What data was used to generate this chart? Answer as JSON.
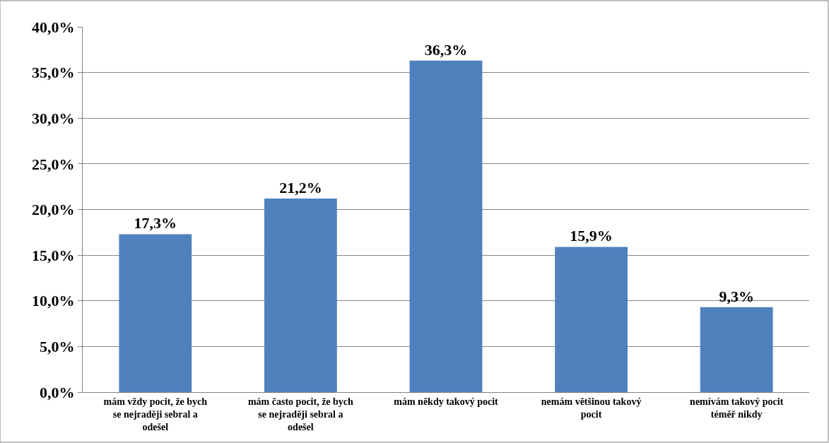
{
  "chart_data": {
    "type": "bar",
    "categories": [
      "mám vždy pocit, že bych se nejraději sebral a odešel",
      "mám často pocit, že bych se nejraději sebral a odešel",
      "mám někdy takový pocit",
      "nemám většinou takový pocit",
      "nemívám takový pocit téměř nikdy"
    ],
    "values": [
      17.3,
      21.2,
      36.3,
      15.9,
      9.3
    ],
    "value_labels": [
      "17,3%",
      "21,2%",
      "36,3%",
      "15,9%",
      "9,3%"
    ],
    "color": "#4f81bd",
    "ylim": [
      0,
      40
    ],
    "yticks": [
      {
        "value": 0,
        "label": "0,0%"
      },
      {
        "value": 5,
        "label": "5,0%"
      },
      {
        "value": 10,
        "label": "10,0%"
      },
      {
        "value": 15,
        "label": "15,0%"
      },
      {
        "value": 20,
        "label": "20,0%"
      },
      {
        "value": 25,
        "label": "25,0%"
      },
      {
        "value": 30,
        "label": "30,0%"
      },
      {
        "value": 35,
        "label": "35,0%"
      },
      {
        "value": 40,
        "label": "40,0%"
      }
    ],
    "grid": "y",
    "legend": false
  }
}
